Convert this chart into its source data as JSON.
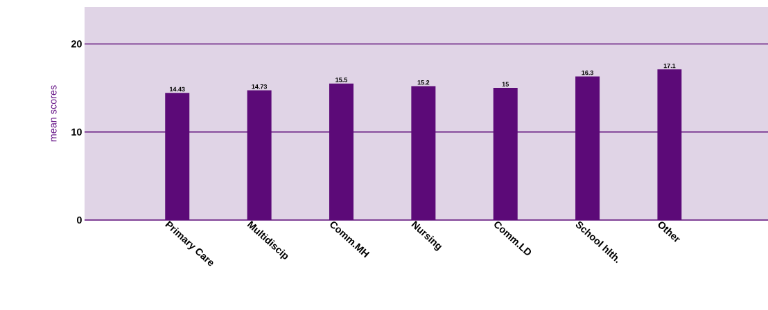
{
  "chart_data": {
    "type": "bar",
    "ylabel": "mean scores",
    "categories": [
      "Primary Care",
      "Multidiscip",
      "Comm.MH",
      "Nursing",
      "Comm.LD",
      "School hlth.",
      "Other"
    ],
    "values": [
      14.43,
      14.73,
      15.5,
      15.2,
      15,
      16.3,
      17.1
    ],
    "value_labels": [
      "14.43",
      "14.73",
      "15.5",
      "15.2",
      "15",
      "16.3",
      "17.1"
    ],
    "color": "#5c0a78",
    "ylim": [
      0,
      24.2
    ],
    "yticks": [
      0,
      10,
      20
    ],
    "grid": "y"
  }
}
